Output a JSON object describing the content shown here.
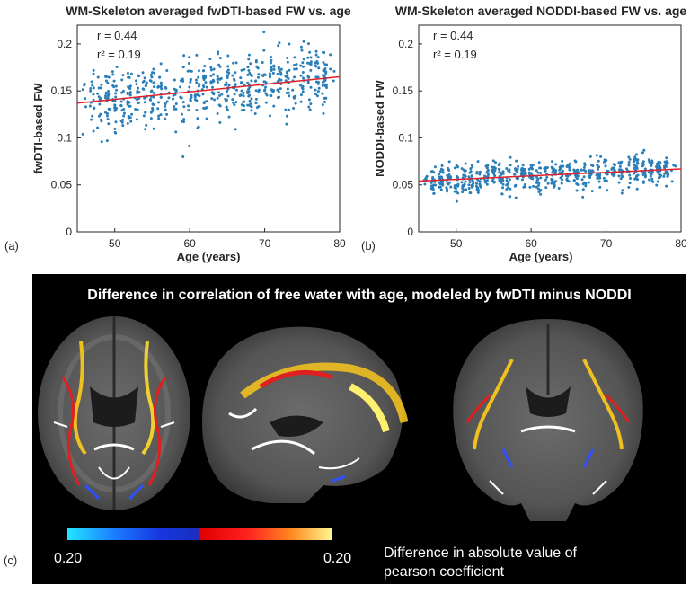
{
  "chart_data": [
    {
      "type": "scatter",
      "panel_label": "(a)",
      "title": "WM-Skeleton averaged fwDTI-based FW vs. age",
      "xlabel": "Age (years)",
      "ylabel": "fwDTI-based FW",
      "xlim": [
        45,
        80
      ],
      "ylim": [
        0,
        0.22
      ],
      "xticks": [
        "50",
        "60",
        "70",
        "80"
      ],
      "yticks": [
        "0",
        "0.05",
        "0.1",
        "0.15",
        "0.2"
      ],
      "stats": {
        "r": "r = 0.44",
        "r2": "r² = 0.19"
      },
      "fit_line": {
        "x": [
          45,
          80
        ],
        "y": [
          0.137,
          0.165
        ]
      },
      "scatter": {
        "age_min": 46,
        "age_max": 79,
        "intercept": 0.137,
        "slope_per_year": 0.0008,
        "spread": 0.017,
        "n": 640
      }
    },
    {
      "type": "scatter",
      "panel_label": "(b)",
      "title": "WM-Skeleton averaged NODDI-based FW vs. age",
      "xlabel": "Age (years)",
      "ylabel": "NODDI-based FW",
      "xlim": [
        45,
        80
      ],
      "ylim": [
        0,
        0.22
      ],
      "xticks": [
        "50",
        "60",
        "70",
        "80"
      ],
      "yticks": [
        "0",
        "0.05",
        "0.1",
        "0.15",
        "0.2"
      ],
      "stats": {
        "r": "r = 0.44",
        "r2": "r² = 0.19"
      },
      "fit_line": {
        "x": [
          45,
          80
        ],
        "y": [
          0.054,
          0.067
        ]
      },
      "scatter": {
        "age_min": 46,
        "age_max": 79,
        "intercept": 0.054,
        "slope_per_year": 0.00037,
        "spread": 0.008,
        "n": 640
      }
    }
  ],
  "brain_panel": {
    "panel_label": "(c)",
    "title": "Difference in correlation of free water with age, modeled by fwDTI minus NODDI",
    "colorbar_min": "0.20",
    "colorbar_max": "0.20",
    "colorbar_caption_line1": "Difference in absolute value of",
    "colorbar_caption_line2": "pearson coefficient"
  },
  "colors": {
    "scatter": "#2a7fb8",
    "fit": "#e0202a",
    "background": "#000000"
  }
}
